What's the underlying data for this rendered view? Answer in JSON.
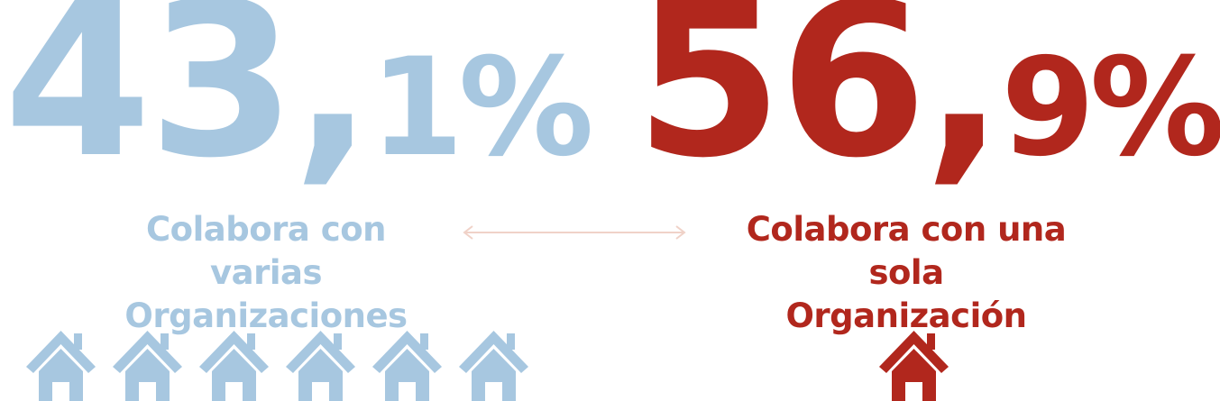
{
  "left": {
    "value_main": "43,",
    "value_suffix": "1%",
    "label_line1": "Colabora con varias",
    "label_line2": "Organizaciones",
    "color": "#a7c7e0",
    "icon": "house-icon",
    "icon_count": 6
  },
  "right": {
    "value_main": "56,",
    "value_suffix": "9%",
    "label_line1": "Colabora con una sola",
    "label_line2": "Organización",
    "color": "#b1271d",
    "icon": "house-icon",
    "icon_count": 1
  },
  "connector": {
    "icon": "double-arrow-icon",
    "color": "#f0d2c8"
  }
}
